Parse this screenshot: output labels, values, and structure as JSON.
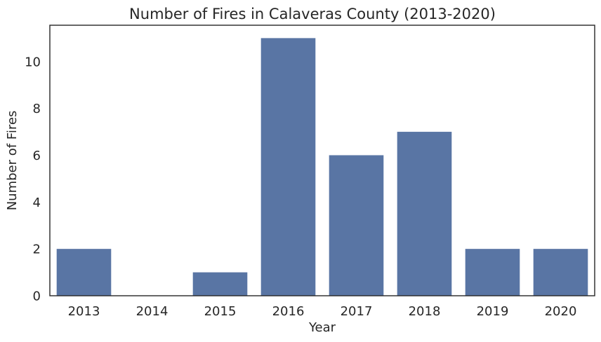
{
  "chart_data": {
    "type": "bar",
    "title": "Number of Fires in Calaveras County (2013-2020)",
    "xlabel": "Year",
    "ylabel": "Number of Fires",
    "categories": [
      "2013",
      "2014",
      "2015",
      "2016",
      "2017",
      "2018",
      "2019",
      "2020"
    ],
    "values": [
      2,
      0,
      1,
      11,
      6,
      7,
      2,
      2
    ],
    "ylim": [
      0,
      11.55
    ],
    "yticks": [
      0,
      2,
      4,
      6,
      8,
      10
    ],
    "bar_color": "#5975a4",
    "grid": false,
    "legend": "none"
  }
}
